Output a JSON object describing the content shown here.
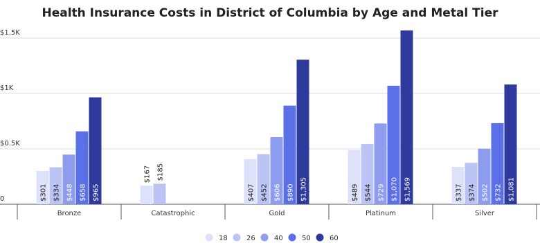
{
  "chart_data": {
    "type": "bar",
    "title": "Health Insurance Costs in District of Columbia by Age and Metal Tier",
    "categories": [
      "Bronze",
      "Catastrophic",
      "Gold",
      "Platinum",
      "Silver"
    ],
    "series": [
      {
        "name": "18",
        "color": "#dde1fa",
        "values": [
          301,
          167,
          407,
          489,
          337
        ],
        "value_labels": [
          "$301",
          "$167",
          "$407",
          "$489",
          "$337"
        ]
      },
      {
        "name": "26",
        "color": "#bcc4f6",
        "values": [
          334,
          185,
          452,
          544,
          374
        ],
        "value_labels": [
          "$334",
          "$185",
          "$452",
          "$544",
          "$374"
        ]
      },
      {
        "name": "40",
        "color": "#8e9cee",
        "values": [
          448,
          null,
          606,
          729,
          502
        ],
        "value_labels": [
          "$448",
          null,
          "$606",
          "$729",
          "$502"
        ]
      },
      {
        "name": "50",
        "color": "#5b6fe6",
        "values": [
          658,
          null,
          890,
          1070,
          732
        ],
        "value_labels": [
          "$658",
          null,
          "$890",
          "$1,070",
          "$732"
        ]
      },
      {
        "name": "60",
        "color": "#2f3b9c",
        "values": [
          965,
          null,
          1305,
          1569,
          1081
        ],
        "value_labels": [
          "$965",
          null,
          "$1,305",
          "$1,569",
          "$1,081"
        ]
      }
    ],
    "ylim": [
      0,
      1600
    ],
    "yticks": [
      0,
      {
        "value": 500,
        "label": "$0.5K"
      },
      {
        "value": 1000,
        "label": "$1K"
      },
      {
        "value": 1500,
        "label": "$1.5K"
      }
    ],
    "grid": true,
    "legend": "bottom"
  }
}
